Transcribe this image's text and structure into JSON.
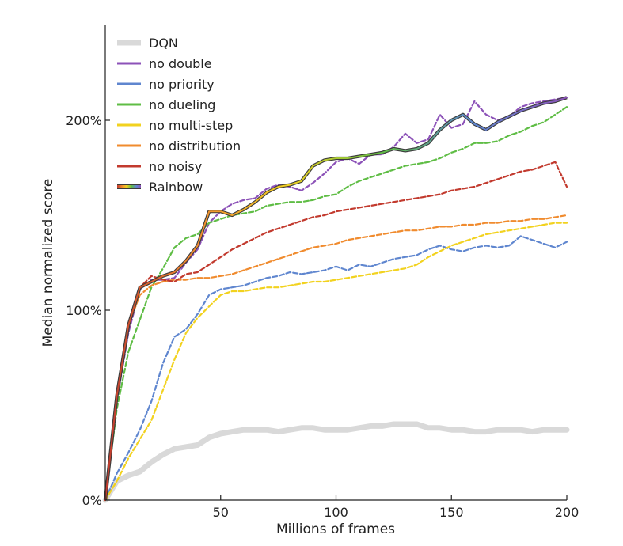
{
  "chart_data": {
    "type": "line",
    "xlabel": "Millions of frames",
    "ylabel": "Median normalized score",
    "xlim": [
      0,
      200
    ],
    "ylim": [
      0,
      250
    ],
    "x_ticks": [
      {
        "value": 50,
        "label": "50"
      },
      {
        "value": 100,
        "label": "100"
      },
      {
        "value": 150,
        "label": "150"
      },
      {
        "value": 200,
        "label": "200"
      }
    ],
    "y_ticks": [
      {
        "value": 0,
        "label": "0%"
      },
      {
        "value": 100,
        "label": "100%"
      },
      {
        "value": 200,
        "label": "200%"
      }
    ],
    "grid": false,
    "legend_position": "top-left",
    "x": [
      0,
      5,
      10,
      15,
      20,
      25,
      30,
      35,
      40,
      45,
      50,
      55,
      60,
      65,
      70,
      75,
      80,
      85,
      90,
      95,
      100,
      105,
      110,
      115,
      120,
      125,
      130,
      135,
      140,
      145,
      150,
      155,
      160,
      165,
      170,
      175,
      180,
      185,
      190,
      195,
      200
    ],
    "series": [
      {
        "name": "DQN",
        "color": "#d9d9d9",
        "style": "solid",
        "width": 7,
        "values": [
          0,
          10,
          13,
          15,
          20,
          24,
          27,
          28,
          29,
          33,
          35,
          36,
          37,
          37,
          37,
          36,
          37,
          38,
          38,
          37,
          37,
          37,
          38,
          39,
          39,
          40,
          40,
          40,
          38,
          38,
          37,
          37,
          36,
          36,
          37,
          37,
          37,
          36,
          37,
          37,
          37
        ]
      },
      {
        "name": "no double",
        "color": "#8c52b8",
        "style": "dashed",
        "width": 2.2,
        "values": [
          0,
          52,
          88,
          111,
          116,
          116,
          117,
          125,
          132,
          146,
          152,
          156,
          158,
          159,
          164,
          166,
          165,
          163,
          167,
          172,
          178,
          180,
          177,
          182,
          182,
          186,
          193,
          188,
          190,
          203,
          196,
          198,
          210,
          203,
          200,
          202,
          207,
          209,
          210,
          211,
          212
        ]
      },
      {
        "name": "no priority",
        "color": "#5f86cf",
        "style": "dashed",
        "width": 2.2,
        "values": [
          0,
          14,
          25,
          37,
          52,
          72,
          86,
          90,
          98,
          108,
          111,
          112,
          113,
          115,
          117,
          118,
          120,
          119,
          120,
          121,
          123,
          121,
          124,
          123,
          125,
          127,
          128,
          129,
          132,
          134,
          132,
          131,
          133,
          134,
          133,
          134,
          139,
          137,
          135,
          133,
          136
        ]
      },
      {
        "name": "no dueling",
        "color": "#5fbd45",
        "style": "dashed",
        "width": 2.2,
        "values": [
          0,
          48,
          78,
          95,
          112,
          122,
          133,
          138,
          140,
          146,
          148,
          150,
          151,
          152,
          155,
          156,
          157,
          157,
          158,
          160,
          161,
          165,
          168,
          170,
          172,
          174,
          176,
          177,
          178,
          180,
          183,
          185,
          188,
          188,
          189,
          192,
          194,
          197,
          199,
          203,
          207
        ]
      },
      {
        "name": "no multi-step",
        "color": "#f2d21f",
        "style": "dashed",
        "width": 2.2,
        "values": [
          0,
          10,
          22,
          32,
          42,
          58,
          74,
          88,
          96,
          102,
          108,
          110,
          110,
          111,
          112,
          112,
          113,
          114,
          115,
          115,
          116,
          117,
          118,
          119,
          120,
          121,
          122,
          124,
          128,
          131,
          134,
          136,
          138,
          140,
          141,
          142,
          143,
          144,
          145,
          146,
          146
        ]
      },
      {
        "name": "no distribution",
        "color": "#f08b2e",
        "style": "dashed",
        "width": 2.2,
        "values": [
          0,
          55,
          92,
          108,
          113,
          115,
          116,
          116,
          117,
          117,
          118,
          119,
          121,
          123,
          125,
          127,
          129,
          131,
          133,
          134,
          135,
          137,
          138,
          139,
          140,
          141,
          142,
          142,
          143,
          144,
          144,
          145,
          145,
          146,
          146,
          147,
          147,
          148,
          148,
          149,
          150
        ]
      },
      {
        "name": "no noisy",
        "color": "#c23a2e",
        "style": "dashed",
        "width": 2.2,
        "values": [
          0,
          55,
          90,
          112,
          118,
          116,
          115,
          119,
          120,
          124,
          128,
          132,
          135,
          138,
          141,
          143,
          145,
          147,
          149,
          150,
          152,
          153,
          154,
          155,
          156,
          157,
          158,
          159,
          160,
          161,
          163,
          164,
          165,
          167,
          169,
          171,
          173,
          174,
          176,
          178,
          165
        ]
      },
      {
        "name": "Rainbow",
        "color": "#3b3b3b",
        "style": "solid",
        "width": 2.6,
        "rainbow": [
          "#c23a2e",
          "#f08b2e",
          "#f2d21f",
          "#5fbd45",
          "#5f86cf",
          "#8c52b8"
        ],
        "values": [
          0,
          55,
          92,
          112,
          115,
          118,
          120,
          126,
          134,
          152,
          152,
          150,
          153,
          157,
          162,
          165,
          166,
          168,
          176,
          179,
          180,
          180,
          181,
          182,
          183,
          185,
          184,
          185,
          188,
          195,
          200,
          203,
          198,
          195,
          199,
          202,
          205,
          207,
          209,
          210,
          212
        ]
      }
    ]
  }
}
